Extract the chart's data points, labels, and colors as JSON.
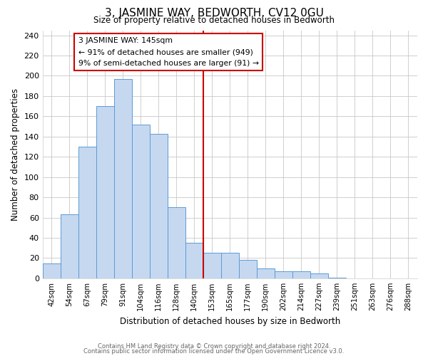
{
  "title": "3, JASMINE WAY, BEDWORTH, CV12 0GU",
  "subtitle": "Size of property relative to detached houses in Bedworth",
  "xlabel": "Distribution of detached houses by size in Bedworth",
  "ylabel": "Number of detached properties",
  "bin_labels": [
    "42sqm",
    "54sqm",
    "67sqm",
    "79sqm",
    "91sqm",
    "104sqm",
    "116sqm",
    "128sqm",
    "140sqm",
    "153sqm",
    "165sqm",
    "177sqm",
    "190sqm",
    "202sqm",
    "214sqm",
    "227sqm",
    "239sqm",
    "251sqm",
    "263sqm",
    "276sqm",
    "288sqm"
  ],
  "bar_heights": [
    15,
    63,
    130,
    170,
    197,
    152,
    143,
    70,
    35,
    25,
    25,
    18,
    10,
    7,
    7,
    5,
    1,
    0,
    0,
    0,
    0
  ],
  "bar_color": "#c5d8f0",
  "bar_edge_color": "#5b9bd5",
  "vline_color": "#cc0000",
  "annotation_title": "3 JASMINE WAY: 145sqm",
  "annotation_line1": "← 91% of detached houses are smaller (949)",
  "annotation_line2": "9% of semi-detached houses are larger (91) →",
  "annotation_box_edge_color": "#cc0000",
  "ylim": [
    0,
    245
  ],
  "yticks": [
    0,
    20,
    40,
    60,
    80,
    100,
    120,
    140,
    160,
    180,
    200,
    220,
    240
  ],
  "footer_line1": "Contains HM Land Registry data © Crown copyright and database right 2024.",
  "footer_line2": "Contains public sector information licensed under the Open Government Licence v3.0.",
  "background_color": "#ffffff",
  "grid_color": "#c8c8c8"
}
